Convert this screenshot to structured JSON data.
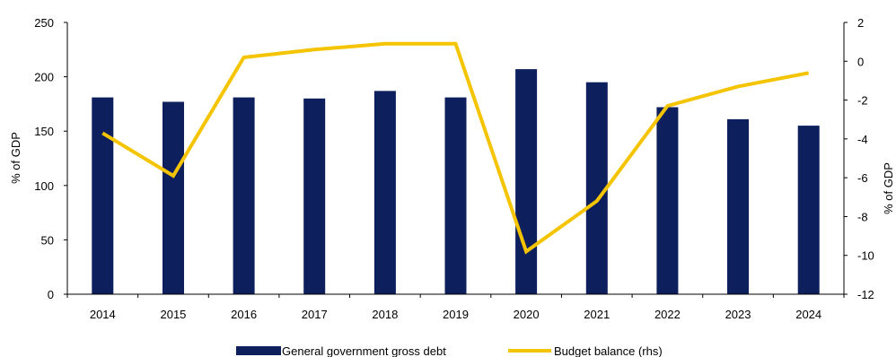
{
  "chart_data": {
    "type": "bar+line",
    "categories": [
      "2014",
      "2015",
      "2016",
      "2017",
      "2018",
      "2019",
      "2020",
      "2021",
      "2022",
      "2023",
      "2024"
    ],
    "series": [
      {
        "name": "General government gross debt",
        "type": "bar",
        "axis": "left",
        "color": "#0d1f5c",
        "values": [
          181,
          177,
          181,
          180,
          187,
          181,
          207,
          195,
          172,
          161,
          155
        ]
      },
      {
        "name": "Budget balance (rhs)",
        "type": "line",
        "axis": "right",
        "color": "#f5c400",
        "values": [
          -3.7,
          -5.9,
          0.2,
          0.6,
          0.9,
          0.9,
          -9.8,
          -7.2,
          -2.3,
          -1.3,
          -0.6
        ]
      }
    ],
    "left_axis": {
      "label": "% of GDP",
      "ylim": [
        0,
        250
      ],
      "ticks": [
        "0",
        "50",
        "100",
        "150",
        "200",
        "250"
      ],
      "tick_values": [
        0,
        50,
        100,
        150,
        200,
        250
      ]
    },
    "right_axis": {
      "label": "% of GDP",
      "ylim": [
        -12,
        2
      ],
      "ticks": [
        "-12",
        "-10",
        "-8",
        "-6",
        "-4",
        "-2",
        "0",
        "2"
      ],
      "tick_values": [
        -12,
        -10,
        -8,
        -6,
        -4,
        -2,
        0,
        2
      ]
    },
    "grid": false,
    "legend_position": "bottom-center"
  }
}
